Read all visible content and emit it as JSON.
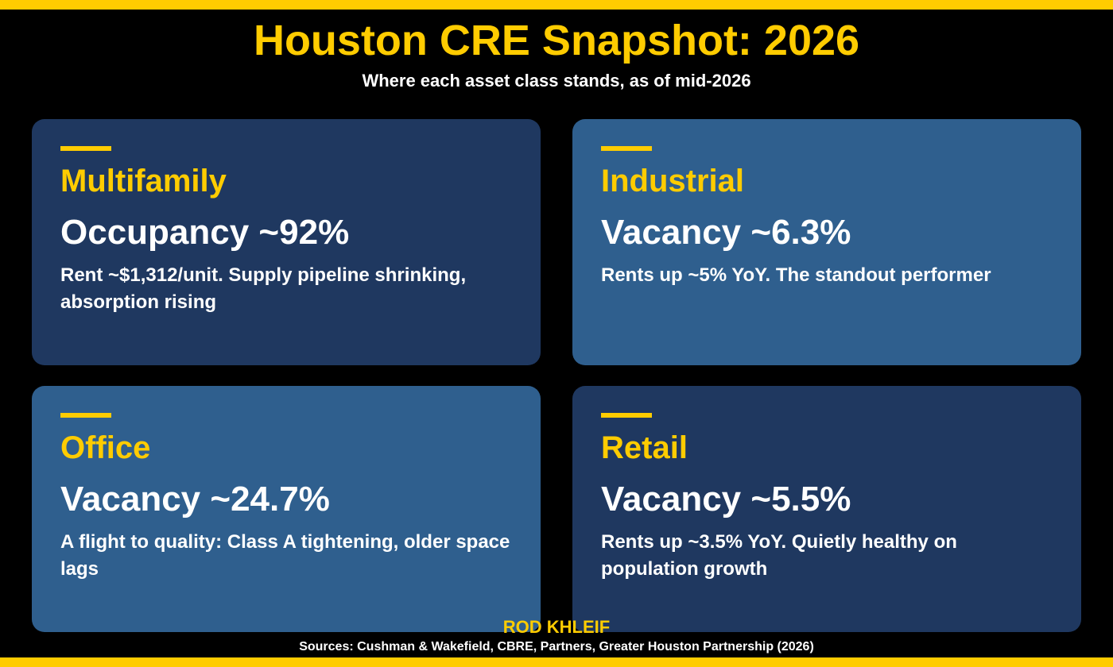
{
  "colors": {
    "background": "#000000",
    "accent_yellow": "#FFCC00",
    "card_dark": "#1F3860",
    "card_light": "#2F5F8E",
    "text_white": "#FFFFFF"
  },
  "header": {
    "title": "Houston CRE Snapshot: 2026",
    "subtitle": "Where each asset class stands, as of mid-2026"
  },
  "cards": [
    {
      "name": "Multifamily",
      "metric": "Occupancy ~92%",
      "description": "Rent ~$1,312/unit. Supply pipeline shrinking, absorption rising",
      "shade": "dark"
    },
    {
      "name": "Industrial",
      "metric": "Vacancy ~6.3%",
      "description": "Rents up ~5% YoY. The standout performer",
      "shade": "light"
    },
    {
      "name": "Office",
      "metric": "Vacancy ~24.7%",
      "description": "A flight to quality: Class A tightening, older space lags",
      "shade": "light"
    },
    {
      "name": "Retail",
      "metric": "Vacancy ~5.5%",
      "description": "Rents up ~3.5% YoY. Quietly healthy on population growth",
      "shade": "dark"
    }
  ],
  "footer": {
    "author": "ROD KHLEIF",
    "sources": "Sources: Cushman & Wakefield, CBRE, Partners, Greater Houston Partnership (2026)"
  }
}
